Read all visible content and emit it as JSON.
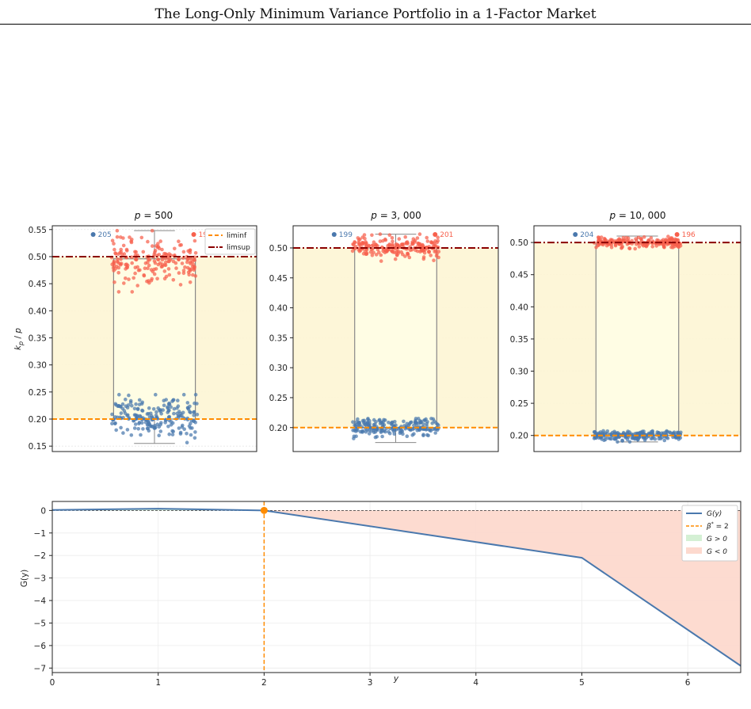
{
  "page": {
    "header_title": "The Long-Only Minimum Variance Portfolio in a 1-Factor Market"
  },
  "colors": {
    "blue": "#4a78ad",
    "red": "#f7604c",
    "orange": "#ff8c00",
    "darkred": "#8b0000",
    "band": "#fdf5d4",
    "box": "#fffde4",
    "neg_fill": "#fdd9ce",
    "pos_fill": "#d4f0d4"
  },
  "chart_data": [
    {
      "type": "scatter",
      "title": "p = 500",
      "title_parts": [
        "p",
        " = 500"
      ],
      "ylabel": "k_p / p",
      "ylabel_parts": [
        "k",
        "p",
        " / ",
        "p"
      ],
      "ylim": [
        0.14,
        0.557
      ],
      "yticks": [
        "0.15",
        "0.20",
        "0.25",
        "0.30",
        "0.35",
        "0.40",
        "0.45",
        "0.50",
        "0.55"
      ],
      "ytick_values": [
        0.15,
        0.2,
        0.25,
        0.3,
        0.35,
        0.4,
        0.45,
        0.5,
        0.55
      ],
      "liminf": 0.2,
      "limsup": 0.5,
      "box": {
        "q1": 0.2,
        "q3": 0.496,
        "median": 0.2,
        "whisker_low": 0.155,
        "whisker_high": 0.548
      },
      "clusters": [
        {
          "name": "blue",
          "count": 205,
          "count_label": "205",
          "center": 0.205,
          "spread": 0.02,
          "min": 0.155,
          "max": 0.245
        },
        {
          "name": "red",
          "count": 195,
          "count_label": "195",
          "center": 0.495,
          "spread": 0.02,
          "min": 0.435,
          "max": 0.548
        }
      ],
      "legend": [
        "liminf",
        "limsup"
      ],
      "grid": true
    },
    {
      "type": "scatter",
      "title": "p = 3, 000",
      "title_parts": [
        "p",
        " = 3, 000"
      ],
      "ylim": [
        0.16,
        0.537
      ],
      "yticks": [
        "0.20",
        "0.25",
        "0.30",
        "0.35",
        "0.40",
        "0.45",
        "0.50"
      ],
      "ytick_values": [
        0.2,
        0.25,
        0.3,
        0.35,
        0.4,
        0.45,
        0.5
      ],
      "liminf": 0.2,
      "limsup": 0.5,
      "box": {
        "q1": 0.2,
        "q3": 0.5,
        "median": 0.2,
        "whisker_low": 0.175,
        "whisker_high": 0.523
      },
      "clusters": [
        {
          "name": "blue",
          "count": 199,
          "count_label": "199",
          "center": 0.2,
          "spread": 0.008,
          "min": 0.175,
          "max": 0.215
        },
        {
          "name": "red",
          "count": 201,
          "count_label": "201",
          "center": 0.5,
          "spread": 0.009,
          "min": 0.478,
          "max": 0.523
        }
      ],
      "grid": true
    },
    {
      "type": "scatter",
      "title": "p = 10, 000",
      "title_parts": [
        "p",
        " = 10, 000"
      ],
      "ylim": [
        0.175,
        0.526
      ],
      "yticks": [
        "0.20",
        "0.25",
        "0.30",
        "0.35",
        "0.40",
        "0.45",
        "0.50"
      ],
      "ytick_values": [
        0.2,
        0.25,
        0.3,
        0.35,
        0.4,
        0.45,
        0.5
      ],
      "liminf": 0.2,
      "limsup": 0.5,
      "box": {
        "q1": 0.2,
        "q3": 0.5,
        "median": 0.2,
        "whisker_low": 0.19,
        "whisker_high": 0.51
      },
      "clusters": [
        {
          "name": "blue",
          "count": 204,
          "count_label": "204",
          "center": 0.2,
          "spread": 0.004,
          "min": 0.19,
          "max": 0.208
        },
        {
          "name": "red",
          "count": 196,
          "count_label": "196",
          "center": 0.5,
          "spread": 0.004,
          "min": 0.49,
          "max": 0.51
        }
      ],
      "grid": true
    },
    {
      "type": "line",
      "xlabel": "y",
      "ylabel": "G(y)",
      "xlim": [
        0,
        6.5
      ],
      "ylim": [
        -7.2,
        0.4
      ],
      "xticks": [
        "0",
        "1",
        "2",
        "3",
        "4",
        "5",
        "6"
      ],
      "xtick_values": [
        0,
        1,
        2,
        3,
        4,
        5,
        6
      ],
      "yticks": [
        "0",
        "−1",
        "−2",
        "−3",
        "−4",
        "−5",
        "−6",
        "−7"
      ],
      "ytick_values": [
        0,
        -1,
        -2,
        -3,
        -4,
        -5,
        -6,
        -7
      ],
      "series": [
        {
          "name": "G(y)",
          "x": [
            0,
            1,
            2,
            5,
            6.5
          ],
          "y": [
            0.02,
            0.08,
            0.0,
            -2.1,
            -6.9
          ]
        }
      ],
      "beta_star": 2,
      "legend": {
        "g": "G(y)",
        "beta_pre": "β",
        "beta_sup": "*",
        "beta_post": " = 2",
        "pos": "G > 0",
        "neg": "G < 0"
      },
      "grid": true
    }
  ],
  "footer": {
    "text": ""
  }
}
